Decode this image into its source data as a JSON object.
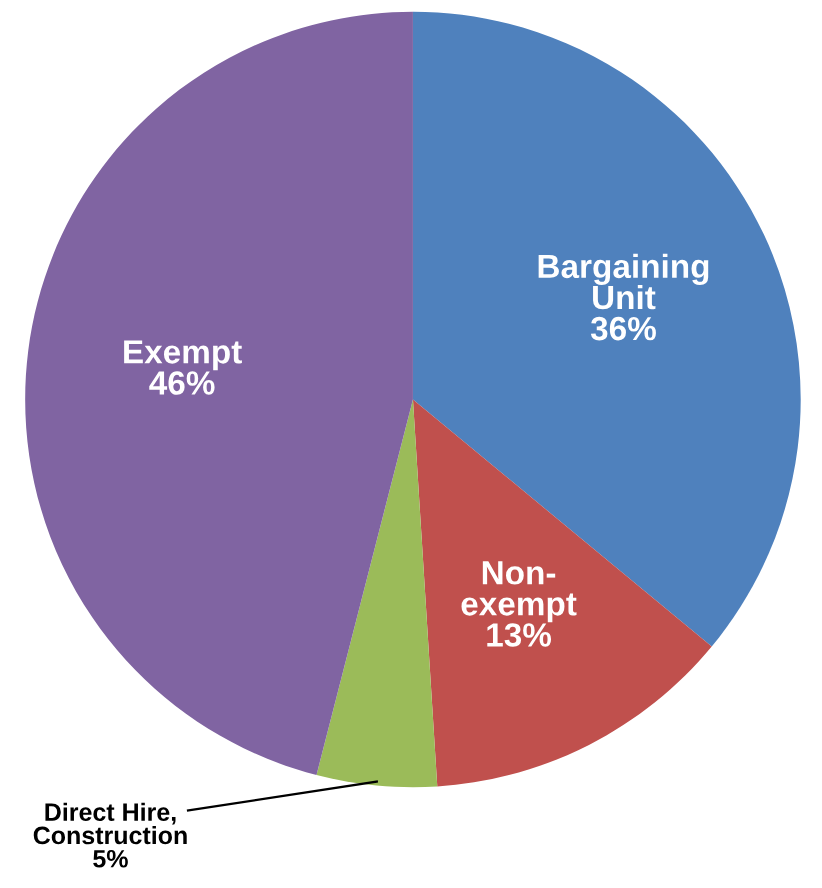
{
  "chart_data": {
    "type": "pie",
    "categories": [
      "Bargaining\nUnit",
      "Non-\nexempt",
      "Direct Hire,\nConstruction",
      "Exempt"
    ],
    "values": [
      36,
      13,
      5,
      46
    ],
    "value_labels": [
      "36%",
      "13%",
      "5%",
      "46%"
    ],
    "colors": [
      "#4f81bd",
      "#c0504d",
      "#9bbb59",
      "#8064a2"
    ],
    "legend": false
  }
}
